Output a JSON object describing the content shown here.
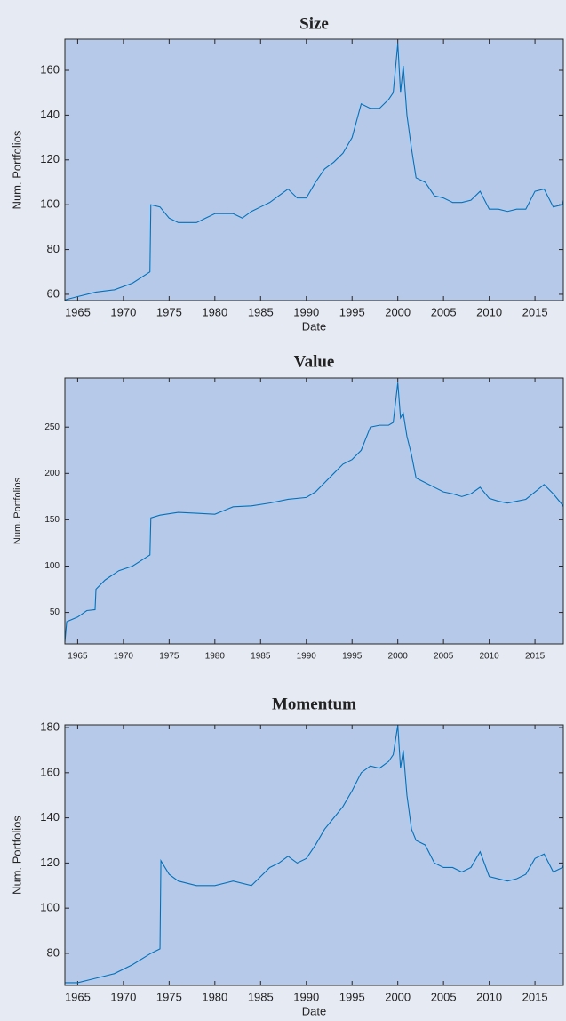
{
  "chart_data": [
    {
      "type": "line",
      "title": "Size",
      "xlabel": "Date",
      "ylabel": "Num. Portfolios",
      "color": "#0072bd",
      "x": [
        1963.6,
        1965,
        1967,
        1969,
        1971,
        1972.9,
        1973.0,
        1974,
        1975,
        1976,
        1977,
        1978,
        1979,
        1980,
        1981,
        1982,
        1983,
        1984,
        1985,
        1986,
        1987,
        1988,
        1989,
        1990,
        1991,
        1992,
        1993,
        1994,
        1995,
        1996,
        1997,
        1998,
        1999,
        1999.5,
        2000,
        2000.3,
        2000.6,
        2001,
        2001.5,
        2002,
        2003,
        2004,
        2005,
        2006,
        2007,
        2008,
        2009,
        2010,
        2011,
        2012,
        2013,
        2014,
        2015,
        2016,
        2017,
        2018,
        2018.1
      ],
      "values": [
        57.5,
        59,
        61,
        62,
        65,
        70,
        100,
        99,
        94,
        92,
        92,
        92,
        94,
        96,
        96,
        96,
        94,
        97,
        99,
        101,
        104,
        107,
        103,
        103,
        110,
        116,
        119,
        123,
        130,
        145,
        143,
        143,
        147,
        150,
        172,
        150,
        162,
        140,
        125,
        112,
        110,
        104,
        103,
        101,
        101,
        102,
        106,
        98,
        98,
        97,
        98,
        98,
        106,
        107,
        99,
        100,
        102
      ],
      "xlim": [
        1963.6,
        2018.1
      ],
      "xticks": [
        1965,
        1970,
        1975,
        1980,
        1985,
        1990,
        1995,
        2000,
        2005,
        2010,
        2015
      ],
      "ylim": [
        57.2,
        173.9
      ],
      "yticks": [
        60,
        80,
        100,
        120,
        140,
        160
      ]
    },
    {
      "type": "line",
      "title": "Value",
      "ylabel": "Num. Portfolios",
      "color": "#0072bd",
      "x": [
        1963.6,
        1963.8,
        1965,
        1966,
        1966.9,
        1967,
        1968,
        1969.5,
        1971,
        1972.9,
        1973.0,
        1974,
        1976,
        1978,
        1980,
        1981,
        1982,
        1984,
        1986,
        1988,
        1990,
        1991,
        1992,
        1993,
        1994,
        1995,
        1996,
        1997,
        1998,
        1999,
        1999.5,
        2000,
        2000.3,
        2000.6,
        2001,
        2001.5,
        2002,
        2003,
        2004,
        2005,
        2006,
        2007,
        2008,
        2009,
        2010,
        2011,
        2012,
        2013,
        2014,
        2015,
        2016,
        2017,
        2018,
        2018.1
      ],
      "values": [
        18,
        40,
        45,
        52,
        53,
        75,
        85,
        95,
        100,
        112,
        152,
        155,
        158,
        157,
        156,
        160,
        164,
        165,
        168,
        172,
        174,
        180,
        190,
        200,
        210,
        215,
        225,
        250,
        252,
        252,
        255,
        298,
        260,
        265,
        240,
        220,
        195,
        190,
        185,
        180,
        178,
        175,
        178,
        185,
        173,
        170,
        168,
        170,
        172,
        180,
        188,
        178,
        166,
        164
      ],
      "xlim": [
        1963.6,
        2018.1
      ],
      "xticks": [
        1965,
        1970,
        1975,
        1980,
        1985,
        1990,
        1995,
        2000,
        2005,
        2010,
        2015
      ],
      "ylim": [
        16,
        303
      ],
      "yticks": [
        50,
        100,
        150,
        200,
        250
      ]
    },
    {
      "type": "line",
      "title": "Momentum",
      "xlabel": "Date",
      "ylabel": "Num. Portfolios",
      "color": "#0072bd",
      "x": [
        1963.6,
        1965,
        1967,
        1969,
        1971,
        1973,
        1974.0,
        1974.1,
        1975,
        1976,
        1978,
        1980,
        1982,
        1984,
        1985,
        1986,
        1987,
        1988,
        1989,
        1990,
        1991,
        1992,
        1993,
        1994,
        1995,
        1996,
        1997,
        1998,
        1999,
        1999.5,
        2000,
        2000.3,
        2000.6,
        2001,
        2001.5,
        2002,
        2003,
        2004,
        2005,
        2006,
        2007,
        2008,
        2009,
        2010,
        2011,
        2012,
        2013,
        2014,
        2015,
        2016,
        2017,
        2018,
        2018.1
      ],
      "values": [
        67,
        67,
        69,
        71,
        75,
        80,
        82,
        121,
        115,
        112,
        110,
        110,
        112,
        110,
        114,
        118,
        120,
        123,
        120,
        122,
        128,
        135,
        140,
        145,
        152,
        160,
        163,
        162,
        165,
        168,
        181,
        162,
        170,
        150,
        135,
        130,
        128,
        120,
        118,
        118,
        116,
        118,
        125,
        114,
        113,
        112,
        113,
        115,
        122,
        124,
        116,
        118,
        119
      ],
      "xlim": [
        1963.6,
        2018.1
      ],
      "xticks": [
        1965,
        1970,
        1975,
        1980,
        1985,
        1990,
        1995,
        2000,
        2005,
        2010,
        2015
      ],
      "ylim": [
        65.8,
        181.2
      ],
      "yticks": [
        80,
        100,
        120,
        140,
        160,
        180
      ]
    }
  ]
}
